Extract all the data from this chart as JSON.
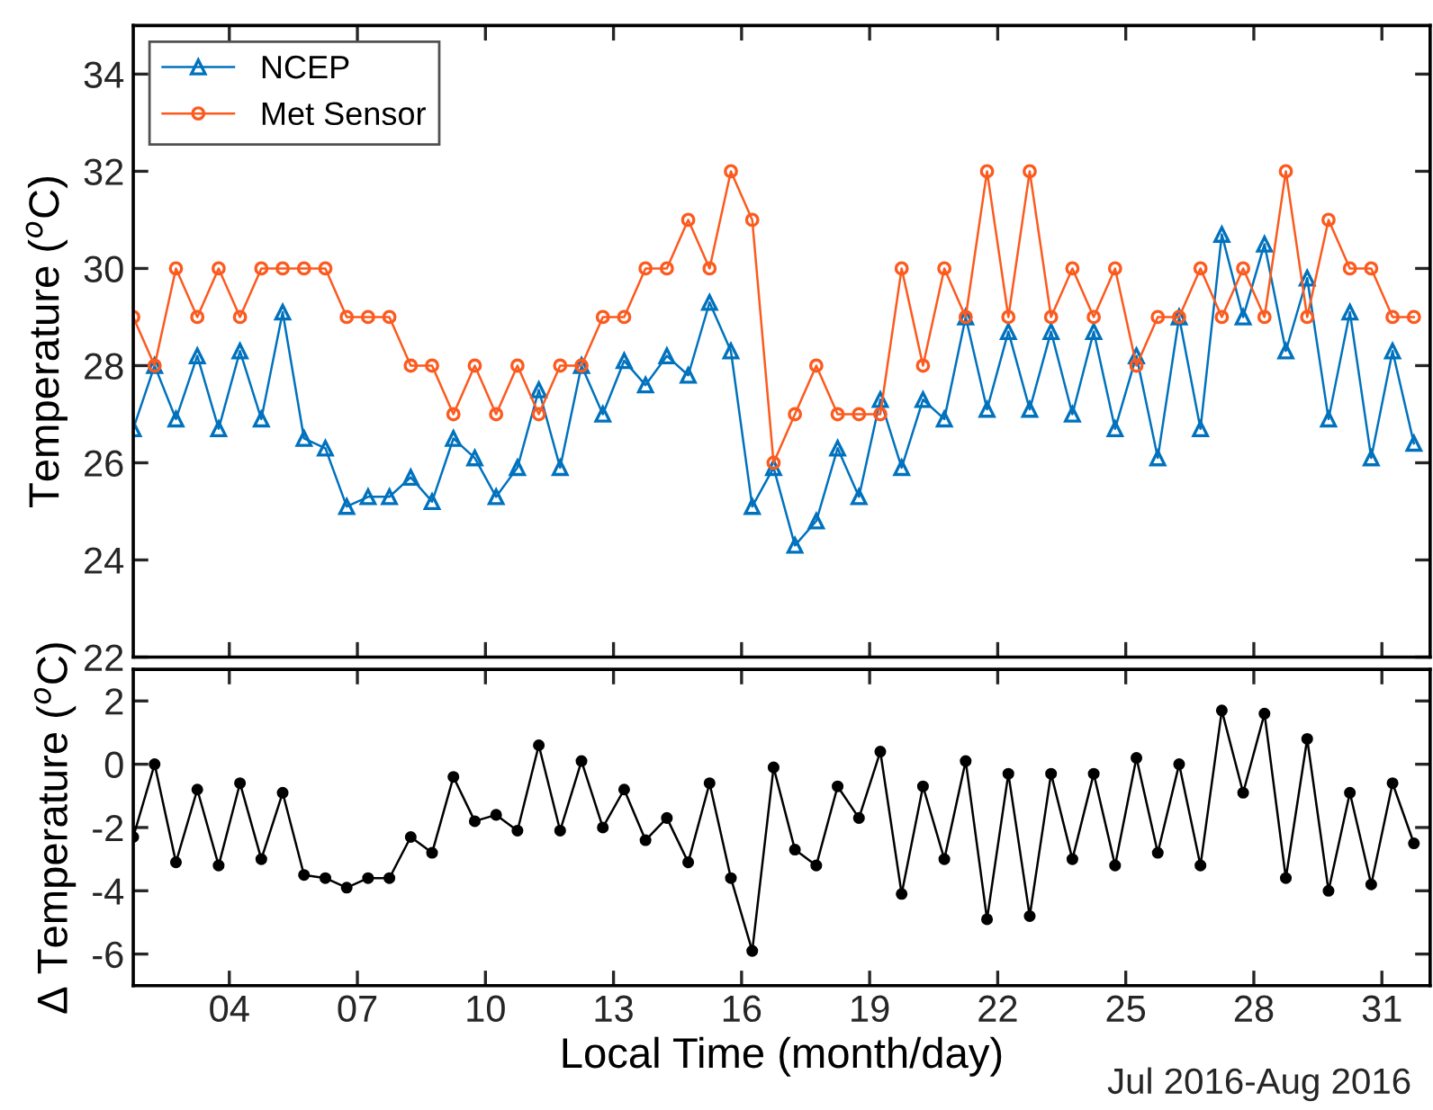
{
  "chart_data": [
    {
      "type": "line",
      "ylabel": "Temperature ($^{o}$C)",
      "x": [
        1.75,
        2.25,
        2.75,
        3.25,
        3.75,
        4.25,
        4.75,
        5.25,
        5.75,
        6.25,
        6.75,
        7.25,
        7.75,
        8.25,
        8.75,
        9.25,
        9.75,
        10.25,
        10.75,
        11.25,
        11.75,
        12.25,
        12.75,
        13.25,
        13.75,
        14.25,
        14.75,
        15.25,
        15.75,
        16.25,
        16.75,
        17.25,
        17.75,
        18.25,
        18.75,
        19.25,
        19.75,
        20.25,
        20.75,
        21.25,
        21.75,
        22.25,
        22.75,
        23.25,
        23.75,
        24.25,
        24.75,
        25.25,
        25.75,
        26.25,
        26.75,
        27.25,
        27.75,
        28.25,
        28.75,
        29.25,
        29.75,
        30.25,
        30.75,
        31.25,
        31.75
      ],
      "series": [
        {
          "name": "NCEP",
          "color": "#0072bd",
          "marker": "triangle",
          "values": [
            26.7,
            28.0,
            26.9,
            28.2,
            26.7,
            28.3,
            26.9,
            29.1,
            26.5,
            26.3,
            25.1,
            25.3,
            25.3,
            25.7,
            25.2,
            26.5,
            26.1,
            25.3,
            25.9,
            27.5,
            25.9,
            28.0,
            27.0,
            28.1,
            27.6,
            28.2,
            27.8,
            29.3,
            28.3,
            25.1,
            25.9,
            24.3,
            24.8,
            26.3,
            25.3,
            27.3,
            25.9,
            27.3,
            26.9,
            29.0,
            27.1,
            28.7,
            27.1,
            28.7,
            27.0,
            28.7,
            26.7,
            28.2,
            26.1,
            29.0,
            26.7,
            30.7,
            29.0,
            30.5,
            28.3,
            29.8,
            26.9,
            29.1,
            26.1,
            28.3,
            26.4
          ]
        },
        {
          "name": "Met Sensor",
          "color": "#fc5a1e",
          "marker": "circle",
          "values": [
            29,
            28,
            30,
            29,
            30,
            29,
            30,
            30,
            30,
            30,
            29,
            29,
            29,
            28,
            28,
            27,
            28,
            27,
            28,
            27,
            28,
            28,
            29,
            29,
            30,
            30,
            31,
            30,
            32,
            31,
            26,
            27,
            28,
            27,
            27,
            27,
            30,
            28,
            30,
            29,
            32,
            29,
            32,
            29,
            30,
            29,
            30,
            28,
            29,
            29,
            30,
            29,
            30,
            29,
            32,
            29,
            31,
            30,
            30,
            29,
            29
          ]
        }
      ],
      "xlim": [
        1.75,
        32.13
      ],
      "xticks": [
        {
          "value": 4,
          "label": null
        },
        {
          "value": 7,
          "label": null
        },
        {
          "value": 10,
          "label": null
        },
        {
          "value": 13,
          "label": null
        },
        {
          "value": 16,
          "label": null
        },
        {
          "value": 19,
          "label": null
        },
        {
          "value": 22,
          "label": null
        },
        {
          "value": 25,
          "label": null
        },
        {
          "value": 28,
          "label": null
        },
        {
          "value": 31,
          "label": null
        }
      ],
      "ylim": [
        22,
        35
      ],
      "yticks": [
        22,
        24,
        26,
        28,
        30,
        32,
        34
      ],
      "tick_labels": "y",
      "legend": "top left",
      "grid": false
    },
    {
      "type": "line",
      "ylabel": "Δ Temperature ($^{o}$C)",
      "xlabel": "Local Time (month/day)",
      "annotations": [
        "Jul 2016-Aug 2016"
      ],
      "x": [
        1.75,
        2.25,
        2.75,
        3.25,
        3.75,
        4.25,
        4.75,
        5.25,
        5.75,
        6.25,
        6.75,
        7.25,
        7.75,
        8.25,
        8.75,
        9.25,
        9.75,
        10.25,
        10.75,
        11.25,
        11.75,
        12.25,
        12.75,
        13.25,
        13.75,
        14.25,
        14.75,
        15.25,
        15.75,
        16.25,
        16.75,
        17.25,
        17.75,
        18.25,
        18.75,
        19.25,
        19.75,
        20.25,
        20.75,
        21.25,
        21.75,
        22.25,
        22.75,
        23.25,
        23.75,
        24.25,
        24.75,
        25.25,
        25.75,
        26.25,
        26.75,
        27.25,
        27.75,
        28.25,
        28.75,
        29.25,
        29.75,
        30.25,
        30.75,
        31.25,
        31.75
      ],
      "series": [
        {
          "color": "#000000",
          "marker": "circle",
          "values": [
            -2.3,
            0.0,
            -3.1,
            -0.8,
            -3.2,
            -0.6,
            -3.0,
            -0.9,
            -3.5,
            -3.6,
            -3.9,
            -3.6,
            -3.6,
            -2.3,
            -2.8,
            -0.4,
            -1.8,
            -1.6,
            -2.1,
            0.6,
            -2.1,
            0.1,
            -2.0,
            -0.8,
            -2.4,
            -1.7,
            -3.1,
            -0.6,
            -3.6,
            -5.9,
            -0.1,
            -2.7,
            -3.2,
            -0.7,
            -1.7,
            0.4,
            -4.1,
            -0.7,
            -3.0,
            0.1,
            -4.9,
            -0.3,
            -4.8,
            -0.3,
            -3.0,
            -0.3,
            -3.2,
            0.2,
            -2.8,
            0.0,
            -3.2,
            1.7,
            -0.9,
            1.6,
            -3.6,
            0.8,
            -4.0,
            -0.9,
            -3.8,
            -0.6,
            -2.5
          ]
        }
      ],
      "xlim": [
        1.75,
        32.13
      ],
      "xticks": [
        {
          "value": 4,
          "label": "04"
        },
        {
          "value": 7,
          "label": "07"
        },
        10,
        13,
        16,
        19,
        22,
        25,
        28,
        31
      ],
      "ylim": [
        -7,
        3
      ],
      "yticks": [
        -6,
        -4,
        -2,
        0,
        2
      ],
      "grid": false
    }
  ]
}
